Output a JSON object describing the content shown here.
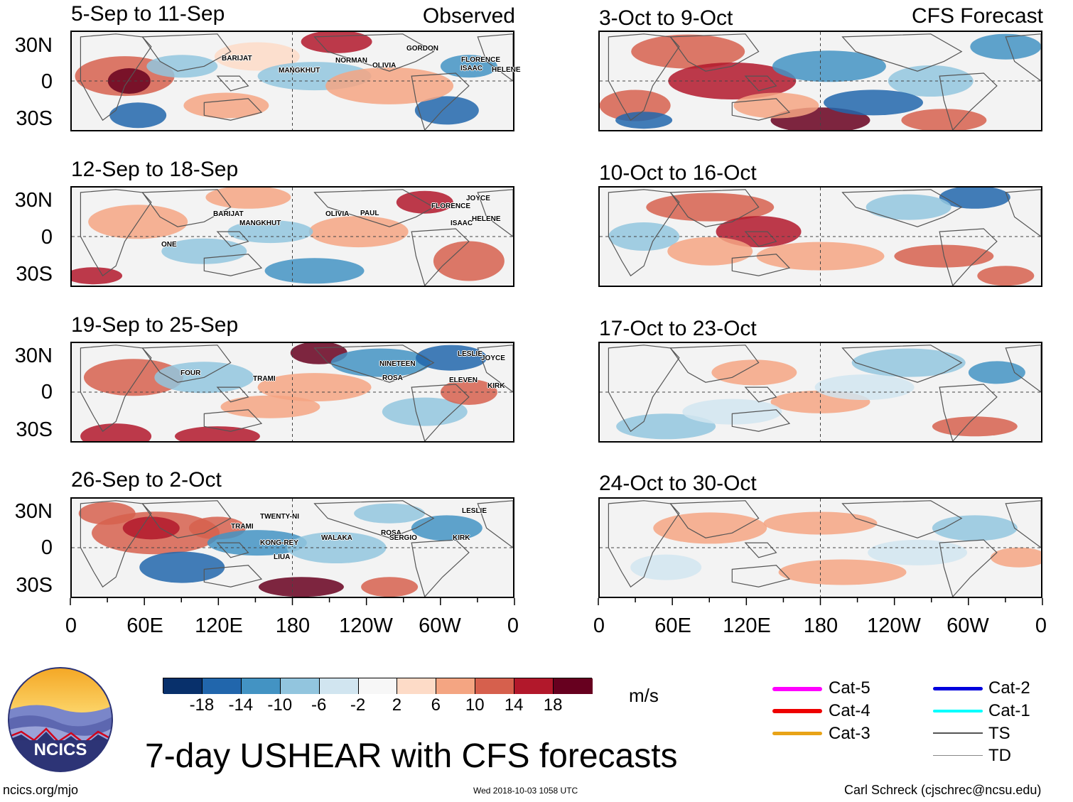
{
  "map_data": {
    "title": "7-day USHEAR with CFS forecasts",
    "units": "m/s",
    "columns": {
      "left": "Observed",
      "right": "CFS Forecast"
    },
    "lat_labels": [
      "30N",
      "0",
      "30S"
    ],
    "lon_labels": [
      "0",
      "60E",
      "120E",
      "180",
      "120W",
      "60W",
      "0"
    ],
    "panels_observed": [
      {
        "title": "5-Sep to 11-Sep",
        "storms": [
          "BARIJAT",
          "MANGKHUT",
          "NORMAN",
          "OLIVIA",
          "GORDON",
          "FLORENCE",
          "ISAAC",
          "HELENE"
        ]
      },
      {
        "title": "12-Sep to 18-Sep",
        "storms": [
          "BARIJAT",
          "MANGKHUT",
          "OLIVIA",
          "PAUL",
          "JOYCE",
          "FLORENCE",
          "ISAAC",
          "HELENE",
          "ONE"
        ]
      },
      {
        "title": "19-Sep to 25-Sep",
        "storms": [
          "FOUR",
          "TRAMI",
          "NINETEEN",
          "ROSA",
          "LESLIE",
          "JOYCE",
          "ELEVEN",
          "KIRK"
        ]
      },
      {
        "title": "26-Sep to 2-Oct",
        "storms": [
          "TWENTY-NI",
          "TRAMI",
          "KONG-REY",
          "WALAKA",
          "LIUA",
          "ROSA",
          "SERGIO",
          "KIRK",
          "LESLIE"
        ]
      }
    ],
    "panels_forecast": [
      {
        "title": "3-Oct to 9-Oct"
      },
      {
        "title": "10-Oct to 16-Oct"
      },
      {
        "title": "17-Oct to 23-Oct"
      },
      {
        "title": "24-Oct to 30-Oct"
      }
    ],
    "colorbar": {
      "ticks": [
        "-18",
        "-14",
        "-10",
        "-6",
        "-2",
        "2",
        "6",
        "10",
        "14",
        "18"
      ],
      "colors": [
        "#08306b",
        "#2166ac",
        "#4393c3",
        "#92c5de",
        "#d1e5f0",
        "#f7f7f7",
        "#fddbc7",
        "#f4a582",
        "#d6604d",
        "#b2182b",
        "#67001f"
      ]
    },
    "storm_legend": [
      {
        "label": "Cat-5",
        "color": "#ff00ff"
      },
      {
        "label": "Cat-4",
        "color": "#ee0000"
      },
      {
        "label": "Cat-3",
        "color": "#e8a317"
      },
      {
        "label": "Cat-2",
        "color": "#0000dd"
      },
      {
        "label": "Cat-1",
        "color": "#00ffff"
      },
      {
        "label": "TS",
        "color": "#555555"
      },
      {
        "label": "TD",
        "color": "#888888"
      }
    ]
  },
  "logo": {
    "text": "NCICS"
  },
  "footer": {
    "url": "ncics.org/mjo",
    "timestamp": "Wed 2018-10-03 1058 UTC",
    "credit": "Carl Schreck (cjschrec@ncsu.edu)"
  }
}
